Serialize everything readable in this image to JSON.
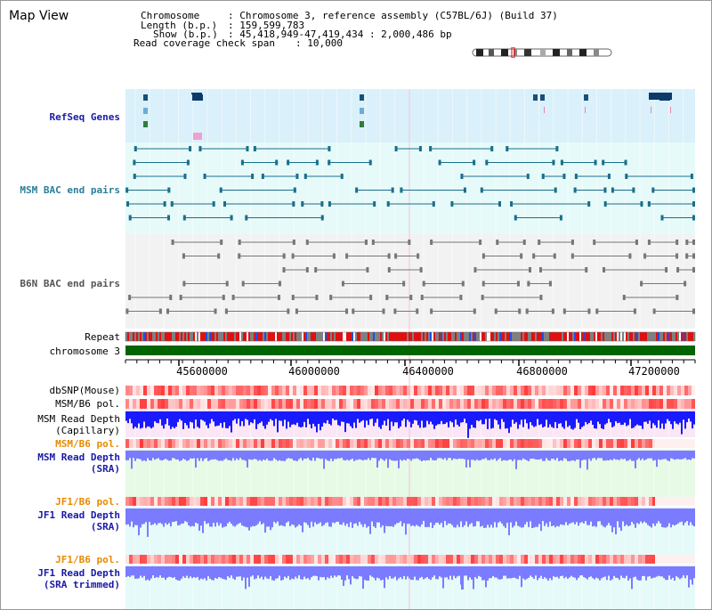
{
  "page": {
    "title": "Map View"
  },
  "header": {
    "chromosome_label": "Chromosome",
    "chromosome_value": ": Chromosome 3, reference assembly (C57BL/6J) (Build 37)",
    "length_label": "Length (b.p.)",
    "length_value": ": 159,599,783",
    "show_label": "Show (b.p.)",
    "show_value": ": 45,418,949-47,419,434 : 2,000,486 bp",
    "coverage_label": "Read coverage check span",
    "coverage_value": ": 10,000"
  },
  "tracks": {
    "refseq": "RefSeq Genes",
    "msm_bac": "MSM BAC end pairs",
    "b6n_bac": "B6N BAC end pairs",
    "repeat": "Repeat",
    "chromosome": "chromosome 3",
    "dbsnp": "dbSNP(Mouse)",
    "msm_b6_pol_1": "MSM/B6 pol.",
    "msm_read_depth_cap_1": "MSM Read Depth",
    "msm_read_depth_cap_2": "(Capillary)",
    "msm_b6_pol_2": "MSM/B6 pol.",
    "msm_read_depth_sra_1": "MSM Read Depth",
    "msm_read_depth_sra_2": "(SRA)",
    "jf1_b6_pol_1": "JF1/B6 pol.",
    "jf1_read_depth_sra_1": "JF1 Read Depth",
    "jf1_read_depth_sra_2": "(SRA)",
    "jf1_b6_pol_2": "JF1/B6 pol.",
    "jf1_read_depth_trim_1": "JF1 Read Depth",
    "jf1_read_depth_trim_2": "(SRA trimmed)"
  },
  "axis": {
    "ticks": [
      "45600000",
      "46000000",
      "46400000",
      "46800000",
      "47200000"
    ]
  },
  "colors": {
    "refseq_bg": "#daf0fa",
    "bac_bg": "#e6fafa",
    "b6n_bg": "#f2f2f2",
    "chromosome": "#006400",
    "msm_feature": "#1a6f8a",
    "b6n_feature": "#777777",
    "depth_blue": "#1a1aff",
    "depth_light": "#7b7bff",
    "pink_bg": "#fae6f5",
    "green_bg": "#e6fae6",
    "cyan_bg": "#e6fafa"
  }
}
